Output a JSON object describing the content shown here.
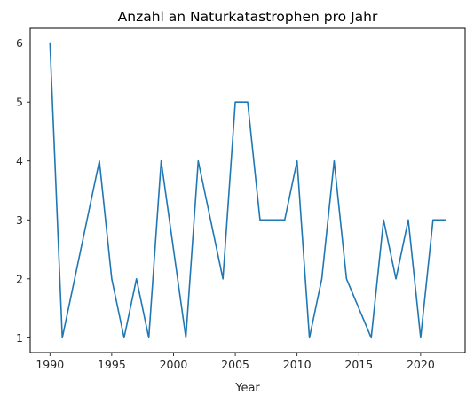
{
  "chart_data": {
    "type": "line",
    "title": "Anzahl an Naturkatastrophen pro Jahr",
    "xlabel": "Year",
    "ylabel": "",
    "xlim": [
      1988.4,
      2023.6
    ],
    "ylim": [
      0.75,
      6.25
    ],
    "xticks": [
      1990,
      1995,
      2000,
      2005,
      2010,
      2015,
      2020
    ],
    "yticks": [
      1,
      2,
      3,
      4,
      5,
      6
    ],
    "grid": false,
    "series": [
      {
        "name": "",
        "color": "#1f77b4",
        "x": [
          1990,
          1991,
          1992,
          1993,
          1994,
          1995,
          1996,
          1997,
          1998,
          1999,
          2000,
          2001,
          2002,
          2003,
          2004,
          2005,
          2006,
          2007,
          2008,
          2009,
          2010,
          2011,
          2012,
          2013,
          2014,
          2015,
          2016,
          2017,
          2018,
          2019,
          2020,
          2021,
          2022
        ],
        "y": [
          6,
          1,
          2,
          3,
          4,
          2,
          1,
          2,
          1,
          4,
          2.5,
          1,
          4,
          3,
          2,
          5,
          5,
          3,
          3,
          3,
          4,
          1,
          2,
          4,
          2,
          1.5,
          1,
          3,
          2,
          3,
          1,
          3,
          3
        ]
      }
    ]
  }
}
